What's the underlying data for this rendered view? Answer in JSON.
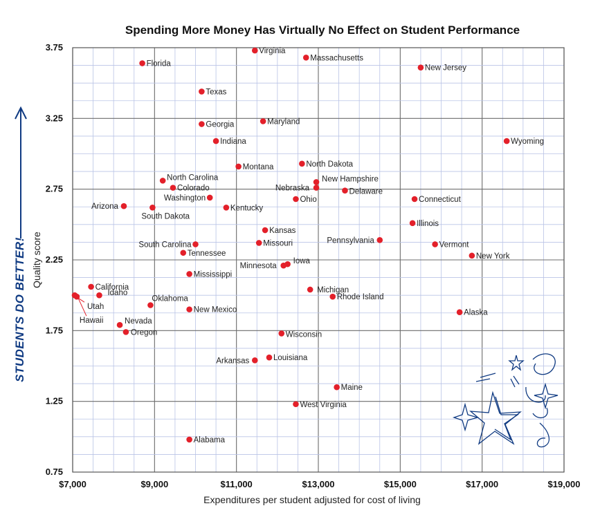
{
  "chart_data": {
    "type": "scatter",
    "title": "Spending More Money Has Virtually No Effect on Student Performance",
    "xlabel": "Expenditures per student adjusted for cost of living",
    "ylabel": "Quality score",
    "side_note": "STUDENTS DO BETTER!",
    "xlim": [
      7000,
      19000
    ],
    "ylim": [
      0.75,
      3.75
    ],
    "x_ticks": [
      {
        "value": 7000,
        "label": "$7,000"
      },
      {
        "value": 9000,
        "label": "$9,000"
      },
      {
        "value": 11000,
        "label": "$11,000"
      },
      {
        "value": 13000,
        "label": "$13,000"
      },
      {
        "value": 15000,
        "label": "$15,000"
      },
      {
        "value": 17000,
        "label": "$17,000"
      },
      {
        "value": 19000,
        "label": "$19,000"
      }
    ],
    "y_ticks": [
      {
        "value": 0.75,
        "label": "0.75"
      },
      {
        "value": 1.25,
        "label": "1.25"
      },
      {
        "value": 1.75,
        "label": "1.75"
      },
      {
        "value": 2.25,
        "label": "2.25"
      },
      {
        "value": 2.75,
        "label": "2.75"
      },
      {
        "value": 3.25,
        "label": "3.25"
      },
      {
        "value": 3.75,
        "label": "3.75"
      }
    ],
    "grid": true,
    "point_color": "#e3202a",
    "grid_color": "#b9c3e6",
    "major_grid_color": "#6b6b6b",
    "accent_color": "#0f3a82",
    "points": [
      {
        "label": "Virginia",
        "x": 11450,
        "y": 3.73
      },
      {
        "label": "Massachusetts",
        "x": 12700,
        "y": 3.68
      },
      {
        "label": "New Jersey",
        "x": 15500,
        "y": 3.61
      },
      {
        "label": "Florida",
        "x": 8700,
        "y": 3.64
      },
      {
        "label": "Texas",
        "x": 10150,
        "y": 3.44
      },
      {
        "label": "Georgia",
        "x": 10150,
        "y": 3.21
      },
      {
        "label": "Maryland",
        "x": 11650,
        "y": 3.23
      },
      {
        "label": "Indiana",
        "x": 10500,
        "y": 3.09
      },
      {
        "label": "Wyoming",
        "x": 17600,
        "y": 3.09
      },
      {
        "label": "Montana",
        "x": 11050,
        "y": 2.91
      },
      {
        "label": "North Dakota",
        "x": 12600,
        "y": 2.93
      },
      {
        "label": "North Carolina",
        "x": 9200,
        "y": 2.81
      },
      {
        "label": "Colorado",
        "x": 9450,
        "y": 2.76
      },
      {
        "label": "New Hampshire",
        "x": 12950,
        "y": 2.8
      },
      {
        "label": "Nebraska",
        "x": 12950,
        "y": 2.76
      },
      {
        "label": "Delaware",
        "x": 13650,
        "y": 2.74
      },
      {
        "label": "Washington",
        "x": 10350,
        "y": 2.69
      },
      {
        "label": "Ohio",
        "x": 12450,
        "y": 2.68
      },
      {
        "label": "Connecticut",
        "x": 15350,
        "y": 2.68
      },
      {
        "label": "Arizona",
        "x": 8250,
        "y": 2.63
      },
      {
        "label": "South Dakota",
        "x": 8950,
        "y": 2.62
      },
      {
        "label": "Kentucky",
        "x": 10750,
        "y": 2.62
      },
      {
        "label": "Illinois",
        "x": 15300,
        "y": 2.51
      },
      {
        "label": "Kansas",
        "x": 11700,
        "y": 2.46
      },
      {
        "label": "Pennsylvania",
        "x": 14500,
        "y": 2.39
      },
      {
        "label": "Missouri",
        "x": 11550,
        "y": 2.37
      },
      {
        "label": "Vermont",
        "x": 15850,
        "y": 2.36
      },
      {
        "label": "South Carolina",
        "x": 10000,
        "y": 2.36
      },
      {
        "label": "Tennessee",
        "x": 9700,
        "y": 2.3
      },
      {
        "label": "New York",
        "x": 16750,
        "y": 2.28
      },
      {
        "label": "Iowa",
        "x": 12250,
        "y": 2.22
      },
      {
        "label": "Minnesota",
        "x": 12150,
        "y": 2.21
      },
      {
        "label": "Mississippi",
        "x": 9850,
        "y": 2.15
      },
      {
        "label": "California",
        "x": 7450,
        "y": 2.06
      },
      {
        "label": "Michigan",
        "x": 12800,
        "y": 2.04
      },
      {
        "label": "Idaho",
        "x": 7650,
        "y": 2.0
      },
      {
        "label": "Utah",
        "x": 7050,
        "y": 2.0
      },
      {
        "label": "Hawaii",
        "x": 7100,
        "y": 1.99
      },
      {
        "label": "Rhode Island",
        "x": 13350,
        "y": 1.99
      },
      {
        "label": "Oklahoma",
        "x": 8900,
        "y": 1.93
      },
      {
        "label": "New Mexico",
        "x": 9850,
        "y": 1.9
      },
      {
        "label": "Alaska",
        "x": 16450,
        "y": 1.88
      },
      {
        "label": "Nevada",
        "x": 8150,
        "y": 1.79
      },
      {
        "label": "Oregon",
        "x": 8300,
        "y": 1.74
      },
      {
        "label": "Wisconsin",
        "x": 12100,
        "y": 1.73
      },
      {
        "label": "Louisiana",
        "x": 11800,
        "y": 1.56
      },
      {
        "label": "Arkansas",
        "x": 11450,
        "y": 1.54
      },
      {
        "label": "Maine",
        "x": 13450,
        "y": 1.35
      },
      {
        "label": "West Virginia",
        "x": 12450,
        "y": 1.23
      },
      {
        "label": "Alabama",
        "x": 9850,
        "y": 0.98
      }
    ]
  }
}
